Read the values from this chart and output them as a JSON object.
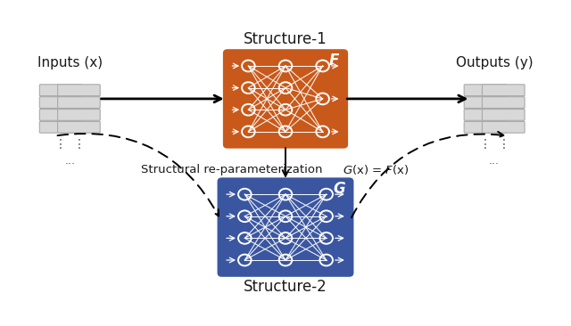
{
  "fig_width": 6.4,
  "fig_height": 3.66,
  "dpi": 100,
  "bg_color": "#ffffff",
  "orange_color": "#C8591A",
  "blue_color": "#3A56A0",
  "stack_face_color": "#d8d8d8",
  "stack_edge_color": "#aaaaaa",
  "text_color": "#1a1a1a",
  "structure1_label": "Structure-1",
  "structure2_label": "Structure-2",
  "inputs_label": "Inputs (x)",
  "outputs_label": "Outputs (y)",
  "reparam_label": "Structural re-parameterization",
  "F_label": "F",
  "G_label": "G",
  "xlim": [
    0,
    10
  ],
  "ylim": [
    0,
    6.5
  ]
}
